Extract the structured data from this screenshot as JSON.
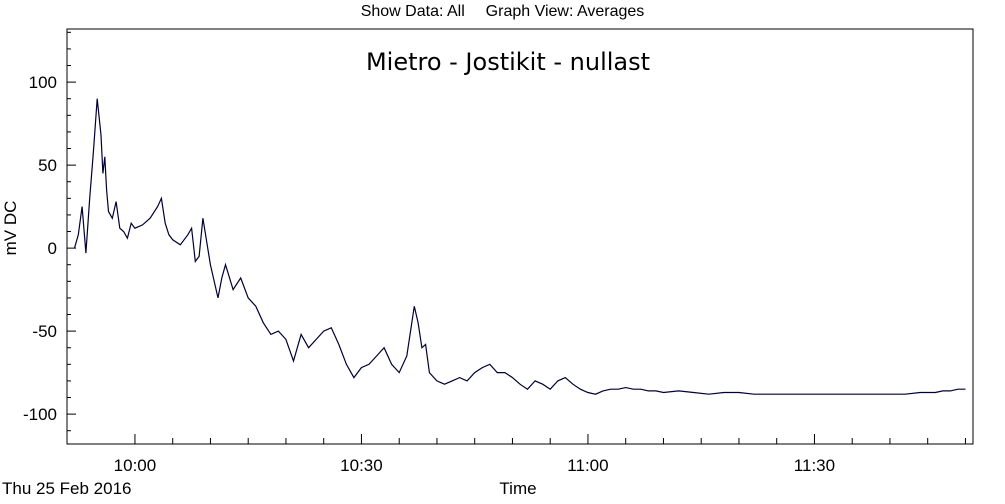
{
  "header": {
    "show_data": "Show Data: All",
    "graph_view": "Graph View: Averages"
  },
  "chart_data": {
    "type": "line",
    "title": "Mietro - Jostikit - nullast",
    "xlabel": "Time",
    "ylabel": "mV DC",
    "date_label": "Thu 25 Feb 2016",
    "xlim": [
      "09:51",
      "11:51"
    ],
    "ylim": [
      -118,
      132
    ],
    "y_ticks": [
      100,
      50,
      0,
      -50,
      -100
    ],
    "y_tick_labels": [
      "100",
      "50",
      "0",
      "-50",
      "-100"
    ],
    "x_tick_labels": [
      {
        "t": "10:00",
        "label": "10:00"
      },
      {
        "t": "10:30",
        "label": "10:30"
      },
      {
        "t": "11:00",
        "label": "11:00"
      },
      {
        "t": "11:30",
        "label": "11:30"
      }
    ],
    "x_minor_ticks": [
      "10:05",
      "10:10",
      "10:15",
      "10:20",
      "10:25",
      "10:35",
      "10:40",
      "10:45",
      "10:50",
      "10:55",
      "11:05",
      "11:10",
      "11:15",
      "11:20",
      "11:25",
      "11:35",
      "11:40",
      "11:45",
      "11:50"
    ],
    "y_minor_step": 10,
    "line_color": "#000033",
    "series": [
      {
        "x": [
          "09:52",
          "09:52:30",
          "09:53",
          "09:53:30",
          "09:54",
          "09:54:30",
          "09:55",
          "09:55:30",
          "09:55:45",
          "09:56",
          "09:56:15",
          "09:56:30",
          "09:57",
          "09:57:30",
          "09:58",
          "09:58:30",
          "09:59",
          "09:59:30",
          "10:00",
          "10:01",
          "10:02",
          "10:03",
          "10:03:30",
          "10:04",
          "10:04:30",
          "10:05",
          "10:06",
          "10:07",
          "10:07:30",
          "10:08",
          "10:08:30",
          "10:09",
          "10:10",
          "10:11",
          "10:11:30",
          "10:12",
          "10:13",
          "10:14",
          "10:15",
          "10:16",
          "10:17",
          "10:18",
          "10:19",
          "10:20",
          "10:21",
          "10:22",
          "10:23",
          "10:24",
          "10:25",
          "10:26",
          "10:27",
          "10:28",
          "10:29",
          "10:30",
          "10:31",
          "10:32",
          "10:33",
          "10:34",
          "10:35",
          "10:36",
          "10:37",
          "10:37:30",
          "10:38",
          "10:38:30",
          "10:39",
          "10:40",
          "10:41",
          "10:42",
          "10:43",
          "10:44",
          "10:45",
          "10:46",
          "10:47",
          "10:48",
          "10:49",
          "10:50",
          "10:51",
          "10:52",
          "10:53",
          "10:54",
          "10:55",
          "10:56",
          "10:57",
          "10:58",
          "10:59",
          "11:00",
          "11:01",
          "11:02",
          "11:03",
          "11:04",
          "11:05",
          "11:06",
          "11:07",
          "11:08",
          "11:09",
          "11:10",
          "11:12",
          "11:14",
          "11:16",
          "11:18",
          "11:20",
          "11:22",
          "11:24",
          "11:26",
          "11:28",
          "11:30",
          "11:32",
          "11:34",
          "11:36",
          "11:38",
          "11:40",
          "11:42",
          "11:44",
          "11:45",
          "11:46",
          "11:47",
          "11:48",
          "11:49",
          "11:50"
        ],
        "y": [
          0,
          8,
          25,
          -3,
          30,
          58,
          90,
          68,
          45,
          55,
          35,
          22,
          18,
          28,
          12,
          10,
          6,
          15,
          12,
          14,
          18,
          25,
          30,
          15,
          8,
          5,
          2,
          8,
          12,
          -8,
          -5,
          18,
          -10,
          -30,
          -18,
          -10,
          -25,
          -18,
          -30,
          -35,
          -45,
          -52,
          -50,
          -55,
          -68,
          -52,
          -60,
          -55,
          -50,
          -48,
          -58,
          -70,
          -78,
          -72,
          -70,
          -65,
          -60,
          -70,
          -75,
          -65,
          -35,
          -45,
          -60,
          -58,
          -75,
          -80,
          -82,
          -80,
          -78,
          -80,
          -75,
          -72,
          -70,
          -75,
          -75,
          -78,
          -82,
          -85,
          -80,
          -82,
          -85,
          -80,
          -78,
          -82,
          -85,
          -87,
          -88,
          -86,
          -85,
          -85,
          -84,
          -85,
          -85,
          -86,
          -86,
          -87,
          -86,
          -87,
          -88,
          -87,
          -87,
          -88,
          -88,
          -88,
          -88,
          -88,
          -88,
          -88,
          -88,
          -88,
          -88,
          -88,
          -87,
          -87,
          -87,
          -86,
          -86,
          -85,
          -85
        ]
      }
    ],
    "grid": false
  }
}
